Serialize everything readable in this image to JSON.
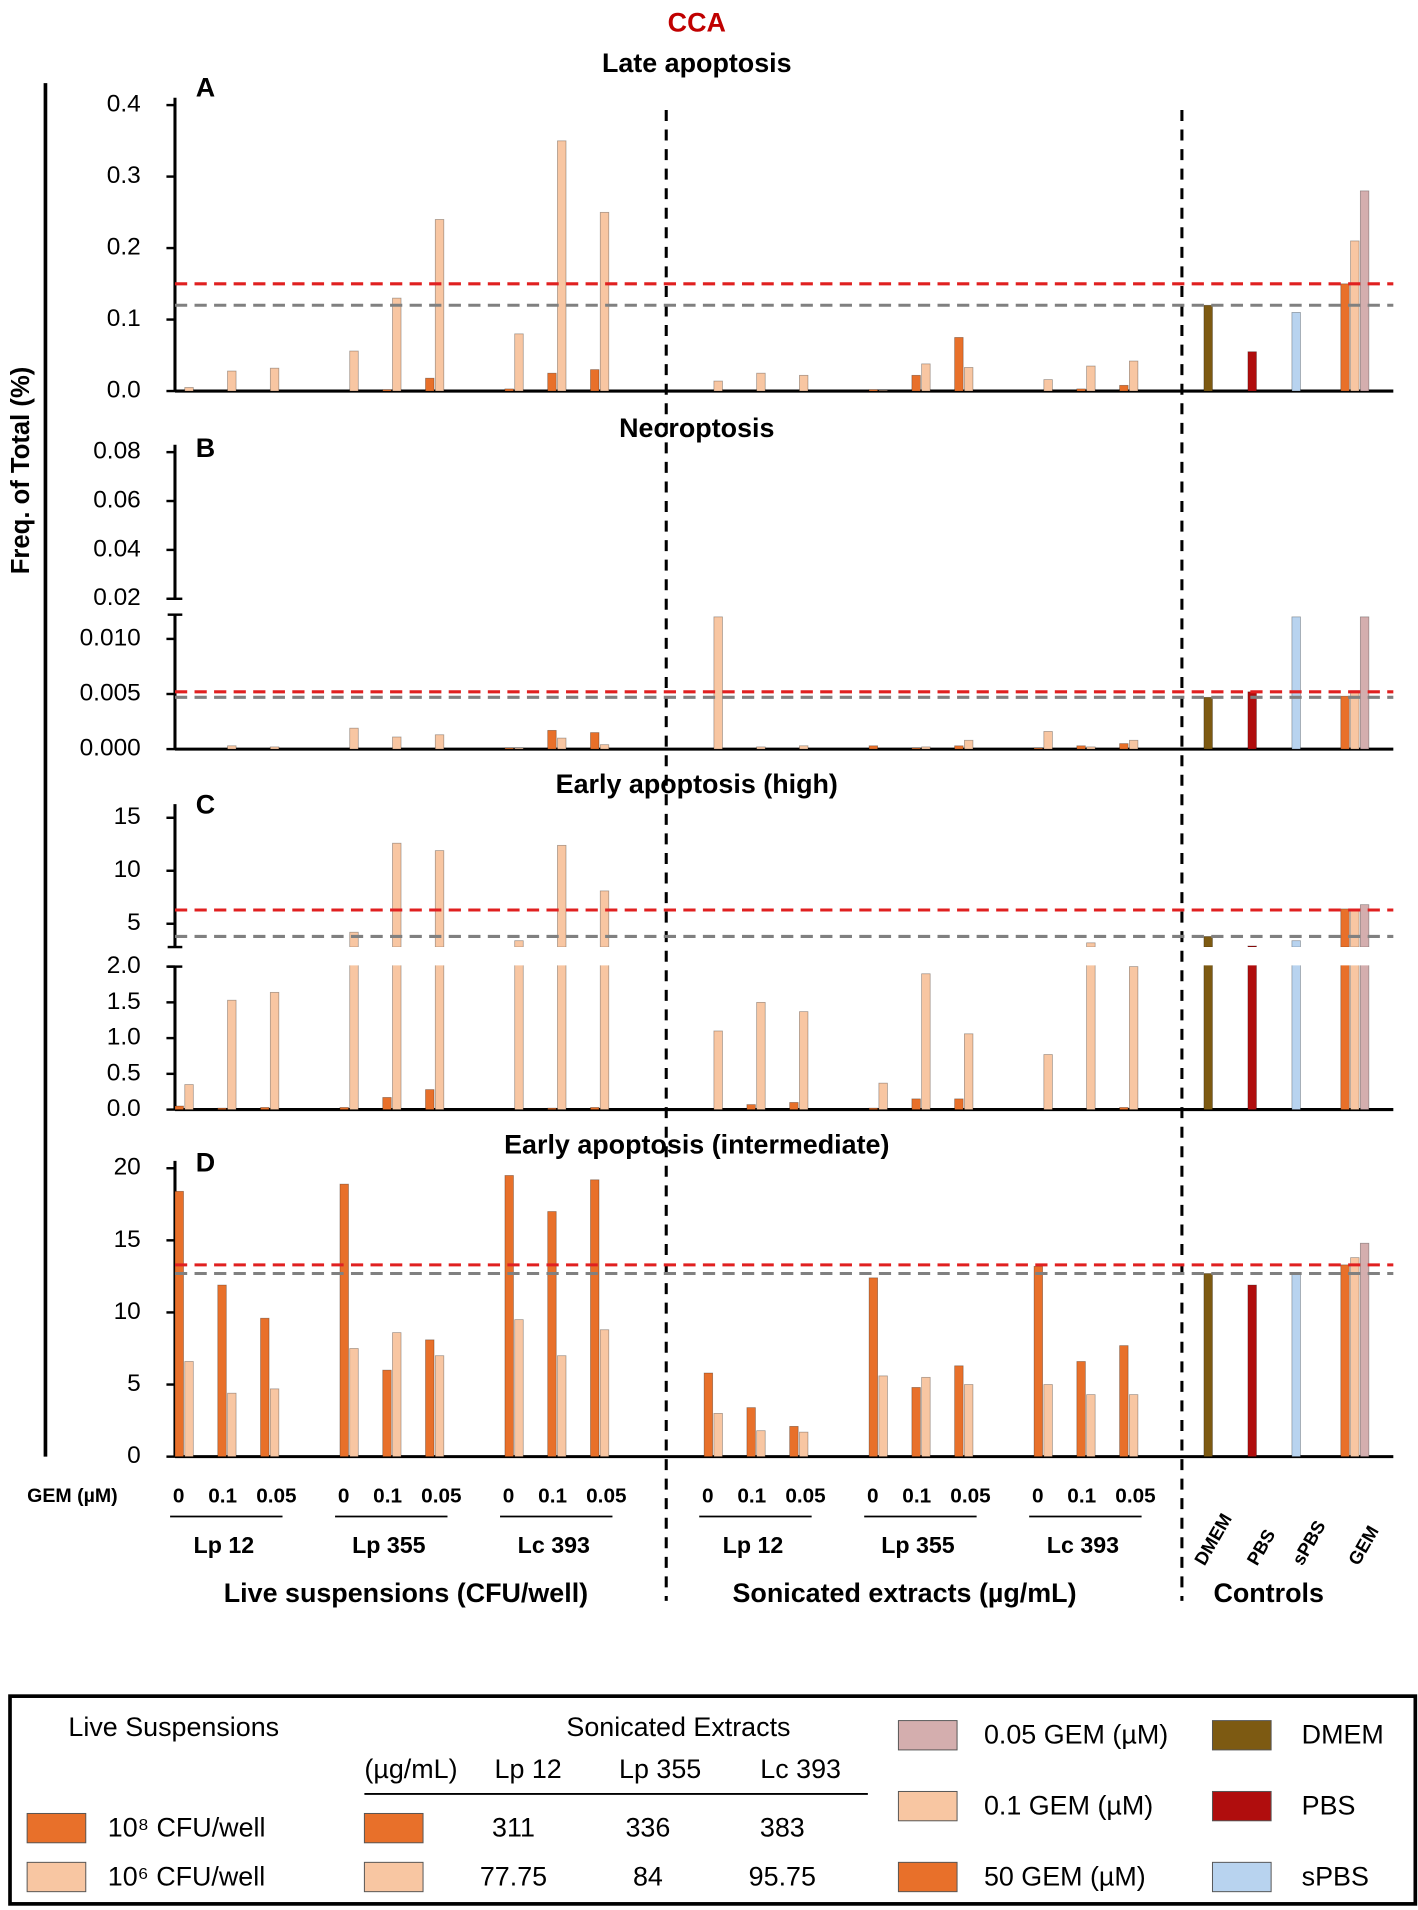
{
  "figure": {
    "title": "CCA",
    "y_label": "Freq. of Total (%)",
    "gem_axis_label": "GEM (µM)",
    "gem_doses": [
      "0",
      "0.1",
      "0.05"
    ],
    "strains": [
      "Lp 12",
      "Lp 355",
      "Lc 393"
    ],
    "sections": [
      "Live suspensions (CFU/well)",
      "Sonicated extracts (µg/mL)",
      "Controls"
    ],
    "control_labels": [
      "DMEM",
      "PBS",
      "sPBS",
      "GEM"
    ],
    "colors": {
      "high": "#e8702a",
      "low": "#f8c6a2",
      "reference": [
        "#e02020",
        "#808080"
      ],
      "controls": [
        "#7d5a12",
        "#b00d0d",
        "#b8d3ef",
        "#e8702a",
        "#f8c6a2",
        "#d4aeae"
      ]
    }
  },
  "chart_data": [
    {
      "type": "bar",
      "panel_label": "A",
      "title": "Late apoptosis",
      "ylim": [
        0,
        0.4
      ],
      "yticks": [
        {
          "value": 0,
          "label": "0.0"
        },
        0.1,
        0.2,
        0.3,
        0.4
      ],
      "live_high": [
        0,
        0,
        0,
        0,
        0.002,
        0.018,
        0.003,
        0.025,
        0.03
      ],
      "live_low": [
        0.005,
        0.028,
        0.032,
        0.056,
        0.13,
        0.24,
        0.08,
        0.35,
        0.25
      ],
      "sonicated_high": [
        0,
        0,
        0,
        0.002,
        0.022,
        0.075,
        0,
        0.003,
        0.008
      ],
      "sonicated_low": [
        0.014,
        0.025,
        0.022,
        0.001,
        0.038,
        0.033,
        0.016,
        0.035,
        0.042
      ],
      "controls": [
        0.12,
        0.055,
        0.11,
        0.15,
        0.21,
        0.28
      ],
      "reference_lines": [
        0.15,
        0.12
      ]
    },
    {
      "type": "bar",
      "panel_label": "B",
      "title": "Necroptosis",
      "ylim": [
        0,
        0.0122
      ],
      "yticks": [
        {
          "value": 0,
          "label": "0.000"
        },
        0.005,
        {
          "value": 0.01,
          "label": "0.010"
        }
      ],
      "ylim_upper": [
        0.02,
        0.08
      ],
      "yticks_upper": [
        0.02,
        0.04,
        0.06,
        0.08
      ],
      "live_high": [
        0,
        0,
        0,
        0,
        0,
        0,
        0.0001,
        0.0017,
        0.0015
      ],
      "live_low": [
        0,
        0.0003,
        0.0002,
        0.0019,
        0.0011,
        0.0013,
        0.0001,
        0.001,
        0.0004
      ],
      "sonicated_high": [
        0,
        0,
        0,
        0.0003,
        0.0001,
        0.0003,
        0.0001,
        0.0003,
        0.0005
      ],
      "sonicated_low": [
        0.012,
        0.0002,
        0.0003,
        0,
        0.0002,
        0.0008,
        0.0016,
        0.0002,
        0.0008
      ],
      "controls": [
        0.0047,
        0.0052,
        0.012,
        0.0048,
        0.0053,
        0.012
      ],
      "reference_lines": [
        0.0052,
        0.0047
      ]
    },
    {
      "type": "bar",
      "panel_label": "C",
      "title": "Early apoptosis (high)",
      "ylim": [
        0,
        2
      ],
      "yticks": [
        {
          "value": 0,
          "label": "0.0"
        },
        0.5,
        {
          "value": 1,
          "label": "1.0"
        },
        1.5,
        {
          "value": 2,
          "label": "2.0"
        }
      ],
      "ylim_upper": [
        2.8,
        15.6
      ],
      "yticks_upper": [
        5,
        10,
        15
      ],
      "live_high": [
        0.05,
        0.02,
        0.03,
        0.03,
        0.17,
        0.28,
        0,
        0.02,
        0.03
      ],
      "live_low": [
        0.35,
        1.53,
        1.64,
        4.2,
        12.6,
        11.9,
        3.4,
        12.4,
        8.1
      ],
      "sonicated_high": [
        0,
        0.07,
        0.1,
        0.02,
        0.15,
        0.15,
        0,
        0,
        0.03
      ],
      "sonicated_low": [
        1.1,
        1.5,
        1.37,
        0.37,
        1.9,
        1.06,
        0.77,
        3.2,
        2.0
      ],
      "controls": [
        3.8,
        2.9,
        3.4,
        6.4,
        6.4,
        6.8
      ],
      "reference_lines": [
        6.3,
        3.8
      ]
    },
    {
      "type": "bar",
      "panel_label": "D",
      "title": "Early apoptosis (intermediate)",
      "ylim": [
        0,
        20
      ],
      "yticks": [
        0,
        5,
        10,
        15,
        20
      ],
      "live_high": [
        18.4,
        11.9,
        9.6,
        18.9,
        6.0,
        8.1,
        19.5,
        17.0,
        19.2
      ],
      "live_low": [
        6.6,
        4.4,
        4.7,
        7.5,
        8.6,
        7.0,
        9.5,
        7.0,
        8.8
      ],
      "sonicated_high": [
        5.8,
        3.4,
        2.1,
        12.4,
        4.8,
        6.3,
        13.2,
        6.6,
        7.7
      ],
      "sonicated_low": [
        3.0,
        1.8,
        1.7,
        5.6,
        5.5,
        5.0,
        5.0,
        4.3,
        4.3
      ],
      "controls": [
        12.7,
        11.9,
        12.7,
        13.3,
        13.8,
        14.8
      ],
      "reference_lines": [
        13.3,
        12.7
      ]
    }
  ],
  "legend": {
    "live_title": "Live Suspensions",
    "live_entries": [
      "10⁸ CFU/well",
      "10⁶ CFU/well"
    ],
    "sonicated_title": "Sonicated Extracts",
    "sonicated_unit": "(µg/mL)",
    "sonicated_columns": [
      "Lp 12",
      "Lp 355",
      "Lc 393"
    ],
    "sonicated_rows": [
      [
        "311",
        "336",
        "383"
      ],
      [
        "77.75",
        "84",
        "95.75"
      ]
    ],
    "gem_entries": [
      "0.05 GEM (µM)",
      "0.1 GEM (µM)",
      "50 GEM (µM)"
    ],
    "control_entries": [
      "DMEM",
      "PBS",
      "sPBS"
    ]
  }
}
